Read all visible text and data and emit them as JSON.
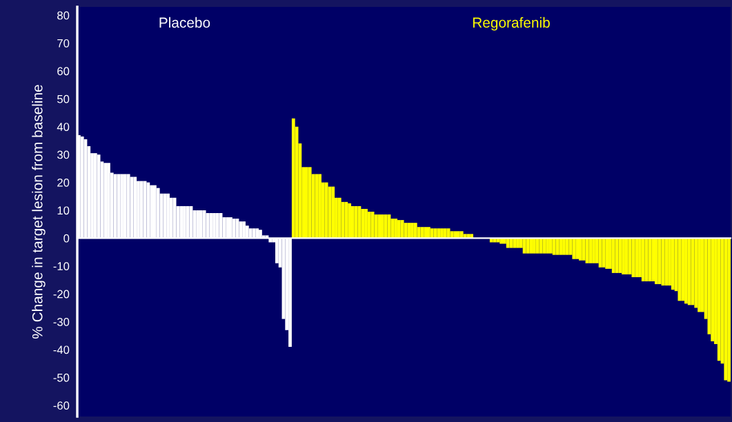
{
  "chart_data": {
    "type": "bar",
    "ylabel": "% Change in target lesion from baseline",
    "categories": [
      null,
      null,
      null,
      null,
      null,
      null,
      null,
      null,
      null,
      null,
      null,
      null,
      null,
      null,
      null,
      null,
      null,
      null,
      null,
      null,
      null,
      null,
      null,
      null,
      null,
      null,
      null,
      null,
      null,
      null,
      null,
      null,
      null,
      null,
      null,
      null,
      null,
      null,
      null,
      null,
      null,
      null,
      null,
      null,
      null,
      null,
      null,
      null,
      null,
      null,
      null,
      null,
      null,
      null,
      null,
      null,
      null,
      null,
      null,
      null,
      null,
      null,
      null,
      null,
      null,
      null,
      null,
      null,
      null,
      null,
      null,
      null,
      null,
      null,
      null,
      null,
      null,
      null,
      null,
      null,
      null,
      null,
      null,
      null,
      null,
      null,
      null,
      null,
      null,
      null,
      null,
      null,
      null,
      null,
      null,
      null,
      null,
      null,
      null,
      null,
      null,
      null,
      null,
      null,
      null,
      null,
      null,
      null,
      null,
      null,
      null,
      null,
      null,
      null,
      null,
      null,
      null,
      null,
      null,
      null,
      null,
      null,
      null,
      null,
      null,
      null,
      null,
      null,
      null,
      null,
      null,
      null,
      null,
      null,
      null,
      null,
      null,
      null,
      null,
      null,
      null,
      null,
      null,
      null,
      null,
      null,
      null,
      null,
      null,
      null,
      null,
      null,
      null,
      null,
      null,
      null,
      null,
      null,
      null,
      null,
      null,
      null,
      null,
      null,
      null,
      null,
      null,
      null,
      null,
      null,
      null,
      null,
      null,
      null,
      null,
      null,
      null,
      null,
      null,
      null,
      null,
      null,
      null,
      null,
      null,
      null,
      null,
      null,
      null,
      null,
      null,
      null,
      null,
      null,
      null,
      null,
      null,
      null
    ],
    "series": [
      {
        "name": "Placebo",
        "color": "#ffffff",
        "values": [
          37,
          36.5,
          35.5,
          33,
          30.5,
          30.5,
          30,
          27.5,
          27,
          27,
          23.5,
          23,
          23,
          23,
          23,
          23,
          22,
          22,
          20.5,
          20.5,
          20.5,
          20,
          19,
          19,
          18,
          16,
          16,
          16,
          14.5,
          14.5,
          11.5,
          11.5,
          11.5,
          11.5,
          11.5,
          10,
          10,
          10,
          10,
          9,
          9,
          9,
          9,
          9,
          7.5,
          7.5,
          7.5,
          7,
          7,
          6,
          6,
          4.5,
          3.5,
          3.5,
          3.5,
          3,
          1,
          1,
          -1.5,
          -1.5,
          -9,
          -10.5,
          -29,
          -33,
          -39,
          null,
          null,
          null,
          null,
          null,
          null,
          null,
          null,
          null,
          null,
          null,
          null,
          null,
          null,
          null,
          null,
          null,
          null,
          null,
          null,
          null,
          null,
          null,
          null,
          null,
          null,
          null,
          null,
          null,
          null,
          null,
          null,
          null,
          null,
          null,
          null,
          null,
          null,
          null,
          null,
          null,
          null,
          null,
          null,
          null,
          null,
          null,
          null,
          null,
          null,
          null,
          null,
          null,
          null,
          null,
          null,
          null,
          null,
          null,
          null,
          null,
          null,
          null,
          null,
          null,
          null,
          null,
          null,
          null,
          null,
          null,
          null,
          null,
          null,
          null,
          null,
          null,
          null,
          null,
          null,
          null,
          null,
          null,
          null,
          null,
          null,
          null,
          null,
          null,
          null,
          null,
          null,
          null,
          null,
          null,
          null,
          null,
          null,
          null,
          null,
          null,
          null,
          null,
          null,
          null,
          null,
          null,
          null,
          null,
          null,
          null,
          null,
          null,
          null,
          null,
          null,
          null,
          null,
          null,
          null,
          null,
          null,
          null,
          null,
          null,
          null,
          null,
          null,
          null,
          null,
          null,
          null,
          null
        ]
      },
      {
        "name": "Regorafenib",
        "color": "#ffff00",
        "values": [
          null,
          null,
          null,
          null,
          null,
          null,
          null,
          null,
          null,
          null,
          null,
          null,
          null,
          null,
          null,
          null,
          null,
          null,
          null,
          null,
          null,
          null,
          null,
          null,
          null,
          null,
          null,
          null,
          null,
          null,
          null,
          null,
          null,
          null,
          null,
          null,
          null,
          null,
          null,
          null,
          null,
          null,
          null,
          null,
          null,
          null,
          null,
          null,
          null,
          null,
          null,
          null,
          null,
          null,
          null,
          null,
          null,
          null,
          null,
          null,
          null,
          null,
          null,
          null,
          null,
          43,
          40,
          34,
          25.5,
          25.5,
          25.5,
          23,
          23,
          23,
          20,
          20,
          18.5,
          18.5,
          14.5,
          14.5,
          13,
          13,
          12.5,
          11.5,
          11.5,
          11.5,
          10.5,
          10.5,
          9.5,
          9.5,
          8.5,
          8.5,
          8.5,
          8.5,
          8.5,
          7,
          7,
          6.5,
          6.5,
          5.5,
          5.5,
          5.5,
          5.5,
          4,
          4,
          4,
          4,
          3.5,
          3.5,
          3.5,
          3.5,
          3.5,
          3.5,
          2.5,
          2.5,
          2.5,
          2.5,
          1.5,
          1.5,
          1.5,
          0,
          0,
          0,
          0,
          0,
          -1.5,
          -1.5,
          -1.5,
          -2,
          -2,
          -3.5,
          -3.5,
          -3.5,
          -3.5,
          -3.5,
          -5.5,
          -5.5,
          -5.5,
          -5.5,
          -5.5,
          -5.5,
          -5.5,
          -5.5,
          -5.5,
          -6,
          -6,
          -6,
          -6,
          -6,
          -6,
          -7.5,
          -7.5,
          -8,
          -8,
          -9,
          -9,
          -9,
          -9,
          -10.5,
          -10.5,
          -11,
          -11,
          -12.5,
          -12.5,
          -12.5,
          -13,
          -13,
          -13,
          -14,
          -14,
          -14,
          -15.5,
          -15.5,
          -15.5,
          -15.5,
          -16.5,
          -16.5,
          -17,
          -17,
          -17,
          -18.5,
          -19,
          -22.5,
          -22.5,
          -23.5,
          -24,
          -24,
          -25,
          -26.5,
          -26.5,
          -29,
          -34.5,
          -37,
          -38,
          -44,
          -45,
          -51,
          -51.5
        ]
      }
    ],
    "ylim": [
      -64,
      83
    ],
    "yticks": [
      -60,
      -50,
      -40,
      -30,
      -20,
      -10,
      0,
      10,
      20,
      30,
      40,
      50,
      60,
      70,
      80
    ],
    "tick_labels": "y"
  }
}
